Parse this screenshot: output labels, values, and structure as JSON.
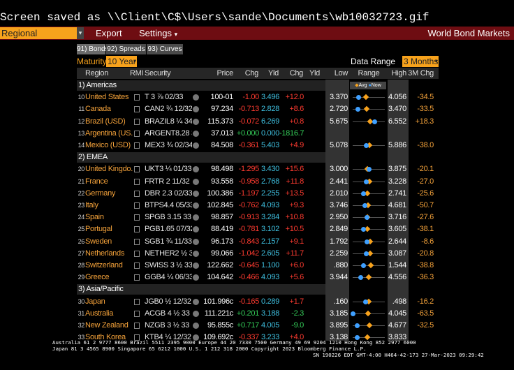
{
  "screen_message": "Screen saved as \\\\Client\\C$\\Users\\sande\\Documents\\wb10032723.gif",
  "toolbar": {
    "dropdown": "Regional",
    "export": "Export",
    "settings": "Settings",
    "title": "World Bond Markets"
  },
  "tabs": [
    "91) Bonds",
    "92) Spreads",
    "93) Curves"
  ],
  "controls": {
    "maturity_label": "Maturity",
    "maturity": "10 Year",
    "range_label": "Data Range",
    "range": "3 Months"
  },
  "columns": [
    "Region",
    "RMI",
    "Security",
    "Price",
    "Chg",
    "Yld",
    "Chg",
    "Yld",
    "Low",
    "Range",
    "High",
    "3M Chg"
  ],
  "legend": [
    "Avg",
    "Now"
  ],
  "groups": [
    {
      "label": "1) Americas",
      "rows": [
        {
          "num": "10",
          "region": "United States",
          "security": "T 3 ⅞ 02/33",
          "price": "100-01",
          "chg": "-1.00",
          "yld": "3.496",
          "ychg": "+12.0",
          "low": "3.370",
          "high": "4.056",
          "chg3m": "-34.5",
          "avg": 3.65
        },
        {
          "num": "11",
          "region": "Canada",
          "security": "CAN2 ¾ 12/32",
          "price": "97.234",
          "chg": "-0.713",
          "yld": "2.828",
          "ychg": "+8.6",
          "low": "2.720",
          "high": "3.470",
          "chg3m": "-33.5",
          "avg": 3.05
        },
        {
          "num": "12",
          "region": "Brazil (USD)",
          "security": "BRAZIL8 ¼ 34",
          "price": "115.373",
          "chg": "-0.072",
          "yld": "6.269",
          "ychg": "+0.8",
          "low": "5.675",
          "high": "6.552",
          "chg3m": "+18.3",
          "avg": 6.15
        },
        {
          "num": "13",
          "region": "Argentina (US...",
          "security": "ARGENT8.28 33",
          "price": "37.013",
          "chg": "+0.000",
          "yld": "0.000",
          "ychg": "-1816.7",
          "low": null,
          "high": null,
          "chg3m": null,
          "avg": null
        },
        {
          "num": "14",
          "region": "Mexico (USD)",
          "security": "MEX3 ¾ 02/34",
          "price": "84.508",
          "chg": "-0.361",
          "yld": "5.403",
          "ychg": "+4.9",
          "low": "5.078",
          "high": "5.886",
          "chg3m": "-38.0",
          "avg": 5.5
        }
      ]
    },
    {
      "label": "2) EMEA",
      "rows": [
        {
          "num": "20",
          "region": "United Kingdo...",
          "security": "UKT3 ¼ 01/33",
          "price": "98.498",
          "chg": "-1.295",
          "yld": "3.430",
          "ychg": "+15.6",
          "low": "3.000",
          "high": "3.875",
          "chg3m": "-20.1",
          "avg": 3.4
        },
        {
          "num": "21",
          "region": "France",
          "security": "FRTR 2 11/32",
          "price": "93.558",
          "chg": "-0.958",
          "yld": "2.768",
          "ychg": "+11.8",
          "low": "2.441",
          "high": "3.228",
          "chg3m": "-27.0",
          "avg": 2.85
        },
        {
          "num": "22",
          "region": "Germany",
          "security": "DBR 2.3 02/33",
          "price": "100.386",
          "chg": "-1.197",
          "yld": "2.255",
          "ychg": "+13.5",
          "low": "2.010",
          "high": "2.741",
          "chg3m": "-25.6",
          "avg": 2.35
        },
        {
          "num": "23",
          "region": "Italy",
          "security": "BTPS4.4 05/33",
          "price": "102.845",
          "chg": "-0.762",
          "yld": "4.093",
          "ychg": "+9.3",
          "low": "3.746",
          "high": "4.681",
          "chg3m": "-50.7",
          "avg": 4.2
        },
        {
          "num": "24",
          "region": "Spain",
          "security": "SPGB 3.15 33",
          "price": "98.857",
          "chg": "-0.913",
          "yld": "3.284",
          "ychg": "+10.8",
          "low": "2.950",
          "high": "3.716",
          "chg3m": "-27.6",
          "avg": 3.3
        },
        {
          "num": "25",
          "region": "Portugal",
          "security": "PGB1.65 07/32",
          "price": "88.419",
          "chg": "-0.781",
          "yld": "3.102",
          "ychg": "+10.5",
          "low": "2.849",
          "high": "3.605",
          "chg3m": "-38.1",
          "avg": 3.2
        },
        {
          "num": "26",
          "region": "Sweden",
          "security": "SGB1 ¾ 11/33",
          "price": "96.173",
          "chg": "-0.843",
          "yld": "2.157",
          "ychg": "+9.1",
          "low": "1.792",
          "high": "2.644",
          "chg3m": "-8.6",
          "avg": 2.25
        },
        {
          "num": "27",
          "region": "Netherlands",
          "security": "NETHER2 ½ 33",
          "price": "99.066",
          "chg": "-1.042",
          "yld": "2.605",
          "ychg": "+11.7",
          "low": "2.259",
          "high": "3.087",
          "chg3m": "-20.8",
          "avg": 2.7
        },
        {
          "num": "28",
          "region": "Switzerland",
          "security": "SWISS 3 ½ 33",
          "price": "122.662",
          "chg": "-0.645",
          "yld": "1.100",
          "ychg": "+6.0",
          "low": ".880",
          "high": "1.544",
          "chg3m": "-38.8",
          "avg": 1.25
        },
        {
          "num": "29",
          "region": "Greece",
          "security": "GGB4 ¼ 06/33",
          "price": "104.642",
          "chg": "-0.466",
          "yld": "4.093",
          "ychg": "+5.6",
          "low": "3.944",
          "high": "4.556",
          "chg3m": "-36.3",
          "avg": 4.25
        }
      ]
    },
    {
      "label": "3) Asia/Pacific",
      "rows": [
        {
          "num": "30",
          "region": "Japan",
          "security": "JGB0 ½ 12/32",
          "price": "101.996c",
          "chg": "-0.165",
          "yld": "0.289",
          "ychg": "+1.7",
          "low": ".160",
          "high": ".498",
          "chg3m": "-16.2",
          "avg": 0.33
        },
        {
          "num": "31",
          "region": "Australia",
          "security": "ACGB 4 ½ 33",
          "price": "111.221c",
          "chg": "+0.201",
          "yld": "3.188",
          "ychg": "-2.3",
          "low": "3.185",
          "high": "4.045",
          "chg3m": "-63.5",
          "avg": 3.6
        },
        {
          "num": "32",
          "region": "New Zealand",
          "security": "NZGB 3 ½ 33",
          "price": "95.855c",
          "chg": "+0.717",
          "yld": "4.005",
          "ychg": "-9.0",
          "low": "3.895",
          "high": "4.677",
          "chg3m": "-32.5",
          "avg": 4.3
        },
        {
          "num": "33",
          "region": "South Korea",
          "security": "KTB4 ¼ 12/32",
          "price": "109.692c",
          "chg": "-0.337",
          "yld": "3.233",
          "ychg": "+4.0",
          "low": "3.138",
          "high": "3.833",
          "chg3m": null,
          "avg": 3.45
        }
      ]
    }
  ],
  "footer": [
    "Australia 61 2 9777 8600 Brazil 5511 2395 9000 Europe 44 20 7330 7500 Germany 49 69 9204 1210 Hong Kong 852 2977 6000",
    "Japan 81 3 4565 8900       Singapore 65 6212 1000      U.S. 1 212 318 2000          Copyright 2023 Bloomberg Finance L.P.",
    "SN 190226 EDT  GMT-4:00 H464-42-173 27-Mar-2023 09:29:42"
  ]
}
